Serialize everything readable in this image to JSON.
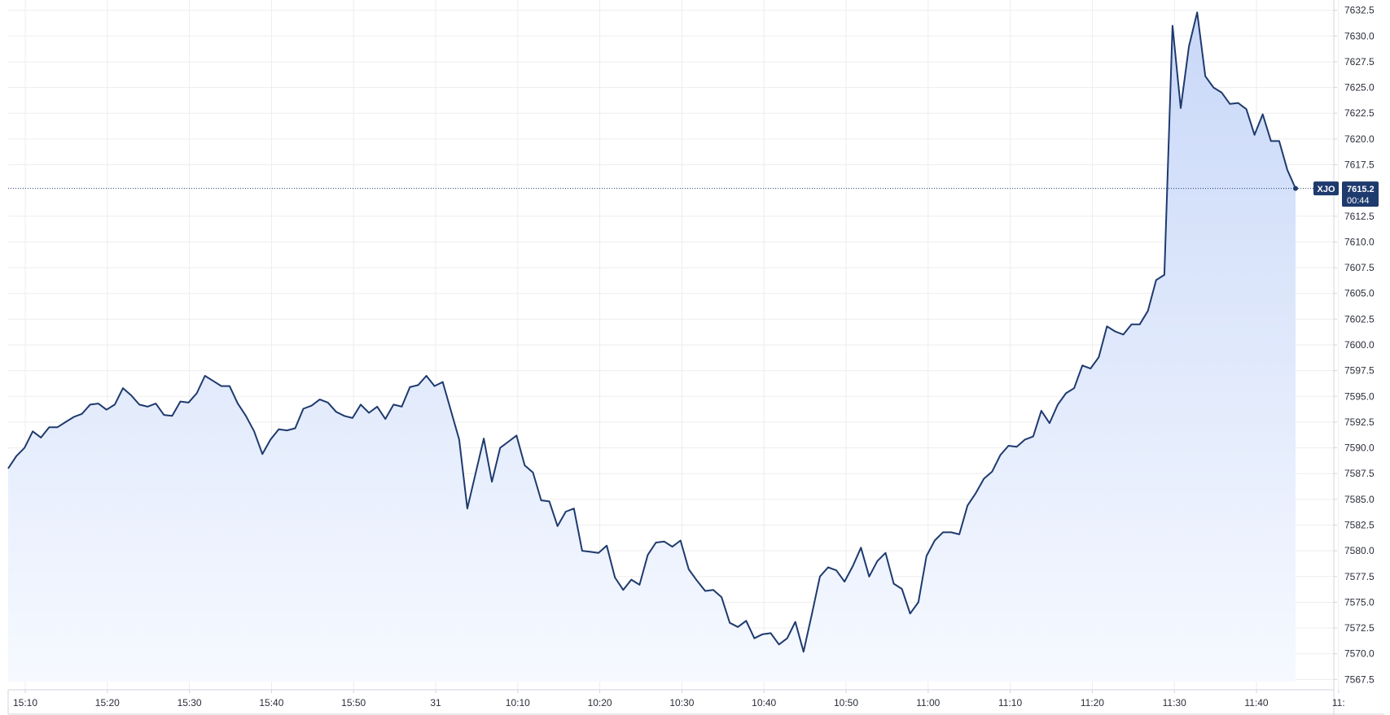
{
  "chart_data": {
    "type": "area",
    "symbol": "XJO",
    "last_value": "7615.2",
    "countdown": "00:44",
    "ylim": [
      7566.5,
      7633.5
    ],
    "y_ticks": [
      "7567.5",
      "7570.0",
      "7572.5",
      "7575.0",
      "7577.5",
      "7580.0",
      "7582.5",
      "7585.0",
      "7587.5",
      "7590.0",
      "7592.5",
      "7595.0",
      "7597.5",
      "7600.0",
      "7602.5",
      "7605.0",
      "7607.5",
      "7610.0",
      "7612.5",
      "7617.5",
      "7620.0",
      "7622.5",
      "7625.0",
      "7627.5",
      "7630.0",
      "7632.5"
    ],
    "x_ticks": [
      "15:10",
      "15:20",
      "15:30",
      "15:40",
      "15:50",
      "31",
      "10:10",
      "10:20",
      "10:30",
      "10:40",
      "10:50",
      "11:00",
      "11:10",
      "11:20",
      "11:30",
      "11:40",
      "11:"
    ],
    "grid": true,
    "colors": {
      "line": "#1e3a6e",
      "fill_top": "#c9d8f8",
      "fill_bottom": "#f6f9ff",
      "badge": "#1e3a6e",
      "grid": "#ededed",
      "price_line": "#1e3a6e"
    },
    "values": [
      7588.0,
      7589.2,
      7590.0,
      7591.6,
      7591.0,
      7592.0,
      7592.0,
      7592.5,
      7593.0,
      7593.3,
      7594.2,
      7594.3,
      7593.7,
      7594.2,
      7595.8,
      7595.1,
      7594.2,
      7594.0,
      7594.3,
      7593.2,
      7593.1,
      7594.5,
      7594.4,
      7595.3,
      7597.0,
      7596.5,
      7596.0,
      7596.0,
      7594.3,
      7593.1,
      7591.6,
      7589.4,
      7590.8,
      7591.8,
      7591.7,
      7591.9,
      7593.8,
      7594.1,
      7594.7,
      7594.4,
      7593.5,
      7593.1,
      7592.9,
      7594.2,
      7593.4,
      7594.0,
      7592.8,
      7594.2,
      7594.0,
      7595.9,
      7596.1,
      7597.0,
      7596.0,
      7596.4,
      7593.6,
      7590.8,
      7584.1,
      7587.5,
      7590.9,
      7586.7,
      7590.0,
      7590.6,
      7591.2,
      7588.3,
      7587.6,
      7584.9,
      7584.8,
      7582.4,
      7583.8,
      7584.1,
      7580.0,
      7579.9,
      7579.8,
      7580.5,
      7577.4,
      7576.2,
      7577.2,
      7576.7,
      7579.6,
      7580.8,
      7580.9,
      7580.4,
      7581.0,
      7578.2,
      7577.1,
      7576.1,
      7576.2,
      7575.5,
      7573.0,
      7572.6,
      7573.2,
      7571.5,
      7571.9,
      7572.0,
      7570.9,
      7571.5,
      7573.1,
      7570.2,
      7573.8,
      7577.5,
      7578.4,
      7578.1,
      7577.0,
      7578.5,
      7580.3,
      7577.5,
      7579.0,
      7579.8,
      7576.8,
      7576.3,
      7573.9,
      7575.0,
      7579.5,
      7581.0,
      7581.8,
      7581.8,
      7581.6,
      7584.4,
      7585.6,
      7587.0,
      7587.7,
      7589.3,
      7590.2,
      7590.1,
      7590.8,
      7591.1,
      7593.6,
      7592.4,
      7594.2,
      7595.3,
      7595.8,
      7598.0,
      7597.7,
      7598.8,
      7601.8,
      7601.3,
      7601.0,
      7602.0,
      7602.0,
      7603.3,
      7606.3,
      7606.8,
      7631.0,
      7623.0,
      7629.0,
      7632.3,
      7626.1,
      7625.0,
      7624.5,
      7623.4,
      7623.5,
      7622.9,
      7620.4,
      7622.4,
      7619.8,
      7619.8,
      7617.0,
      7615.2
    ]
  }
}
